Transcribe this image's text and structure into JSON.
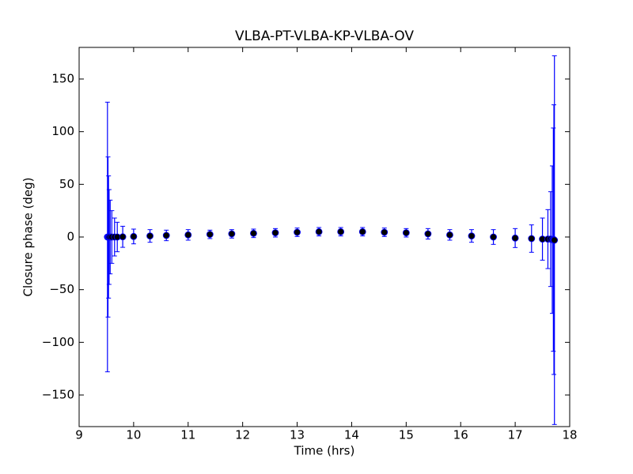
{
  "chart_data": {
    "type": "errorbar",
    "title": "VLBA-PT-VLBA-KP-VLBA-OV",
    "xlabel": "Time (hrs)",
    "ylabel": "Closure phase (deg)",
    "x": [
      9.52,
      9.53,
      9.54,
      9.55,
      9.57,
      9.6,
      9.65,
      9.7,
      9.8,
      10.0,
      10.3,
      10.6,
      11.0,
      11.4,
      11.8,
      12.2,
      12.6,
      13.0,
      13.4,
      13.8,
      14.2,
      14.6,
      15.0,
      15.4,
      15.8,
      16.2,
      16.6,
      17.0,
      17.3,
      17.5,
      17.6,
      17.65,
      17.68,
      17.7,
      17.71,
      17.72
    ],
    "values": [
      0,
      0,
      0,
      0,
      0,
      0,
      0,
      0,
      0.2,
      0.5,
      1,
      1.5,
      2,
      2.5,
      3,
      3.5,
      4,
      4.5,
      5,
      5,
      5,
      4.5,
      4,
      3,
      2,
      1,
      0,
      -1,
      -1.5,
      -2,
      -2,
      -2,
      -2.5,
      -2.5,
      -2.5,
      -3
    ],
    "errors": [
      128,
      76,
      58,
      45,
      35,
      25,
      18,
      14,
      10,
      7,
      6,
      5,
      5,
      4,
      4,
      4,
      4,
      4,
      4,
      4,
      4,
      4,
      4,
      5,
      5,
      6,
      7,
      9,
      13,
      20,
      28,
      45,
      70,
      106,
      128,
      175
    ],
    "color": "#0000ff",
    "marker_color": "#000000",
    "xlim": [
      9,
      18
    ],
    "xticks": [
      9,
      10,
      11,
      12,
      13,
      14,
      15,
      16,
      17,
      18
    ],
    "ylim": [
      -180,
      180
    ],
    "yticks": [
      {
        "value": -150,
        "label": "−150"
      },
      {
        "value": -100,
        "label": "−100"
      },
      {
        "value": -50,
        "label": "−50"
      },
      0,
      50,
      100,
      150
    ]
  }
}
